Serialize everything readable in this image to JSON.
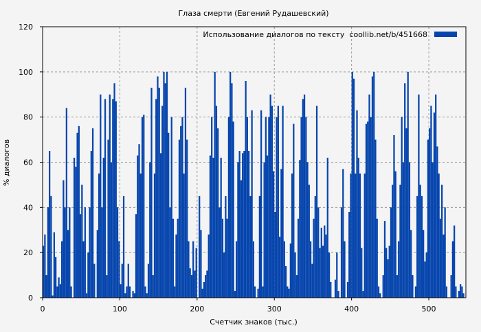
{
  "chart_data": {
    "type": "bar",
    "title": "Глаза смерти (Евгений Рудашевский)",
    "xlabel": "Счетчик знаков (тыс.)",
    "ylabel": "% диалогов",
    "xlim": [
      0,
      548
    ],
    "ylim": [
      0,
      120
    ],
    "xticks": [
      0,
      100,
      200,
      300,
      400,
      500
    ],
    "yticks": [
      0,
      20,
      40,
      60,
      80,
      100,
      120
    ],
    "grid": true,
    "legend_position": "top-right",
    "color": "#0645ad",
    "series": [
      {
        "name": "Использование диалогов по тексту  coollib.net/b/451668",
        "points": [
          [
            0,
            23
          ],
          [
            2,
            28
          ],
          [
            4,
            10
          ],
          [
            6,
            40
          ],
          [
            8,
            65
          ],
          [
            10,
            45
          ],
          [
            12,
            1
          ],
          [
            14,
            29
          ],
          [
            16,
            18
          ],
          [
            18,
            5
          ],
          [
            20,
            9
          ],
          [
            22,
            6
          ],
          [
            24,
            25
          ],
          [
            26,
            52
          ],
          [
            28,
            40
          ],
          [
            30,
            84
          ],
          [
            32,
            30
          ],
          [
            34,
            40
          ],
          [
            36,
            5
          ],
          [
            38,
            0
          ],
          [
            40,
            62
          ],
          [
            42,
            58
          ],
          [
            44,
            73
          ],
          [
            46,
            76
          ],
          [
            48,
            37
          ],
          [
            50,
            50
          ],
          [
            52,
            25
          ],
          [
            54,
            40
          ],
          [
            56,
            2
          ],
          [
            58,
            20
          ],
          [
            60,
            40
          ],
          [
            62,
            65
          ],
          [
            64,
            75
          ],
          [
            66,
            15
          ],
          [
            68,
            0
          ],
          [
            70,
            30
          ],
          [
            72,
            55
          ],
          [
            74,
            90
          ],
          [
            76,
            40
          ],
          [
            78,
            62
          ],
          [
            80,
            88
          ],
          [
            82,
            10
          ],
          [
            84,
            70
          ],
          [
            86,
            90
          ],
          [
            88,
            60
          ],
          [
            90,
            88
          ],
          [
            92,
            95
          ],
          [
            94,
            87
          ],
          [
            96,
            40
          ],
          [
            98,
            25
          ],
          [
            100,
            6
          ],
          [
            102,
            15
          ],
          [
            104,
            45
          ],
          [
            106,
            2
          ],
          [
            108,
            5
          ],
          [
            110,
            15
          ],
          [
            112,
            5
          ],
          [
            114,
            0
          ],
          [
            116,
            3
          ],
          [
            118,
            2
          ],
          [
            120,
            37
          ],
          [
            122,
            63
          ],
          [
            124,
            68
          ],
          [
            126,
            55
          ],
          [
            128,
            80
          ],
          [
            130,
            81
          ],
          [
            132,
            5
          ],
          [
            134,
            2
          ],
          [
            136,
            15
          ],
          [
            138,
            60
          ],
          [
            140,
            93
          ],
          [
            142,
            10
          ],
          [
            144,
            55
          ],
          [
            146,
            88
          ],
          [
            148,
            98
          ],
          [
            150,
            93
          ],
          [
            152,
            64
          ],
          [
            154,
            85
          ],
          [
            156,
            100
          ],
          [
            158,
            95
          ],
          [
            160,
            100
          ],
          [
            162,
            73
          ],
          [
            164,
            40
          ],
          [
            166,
            80
          ],
          [
            168,
            35
          ],
          [
            170,
            5
          ],
          [
            172,
            28
          ],
          [
            174,
            35
          ],
          [
            176,
            70
          ],
          [
            178,
            76
          ],
          [
            180,
            80
          ],
          [
            182,
            55
          ],
          [
            184,
            93
          ],
          [
            186,
            70
          ],
          [
            188,
            25
          ],
          [
            190,
            13
          ],
          [
            192,
            10
          ],
          [
            194,
            25
          ],
          [
            196,
            12
          ],
          [
            198,
            22
          ],
          [
            200,
            0
          ],
          [
            202,
            45
          ],
          [
            204,
            30
          ],
          [
            206,
            4
          ],
          [
            208,
            7
          ],
          [
            210,
            10
          ],
          [
            212,
            12
          ],
          [
            214,
            28
          ],
          [
            216,
            63
          ],
          [
            218,
            80
          ],
          [
            220,
            62
          ],
          [
            222,
            100
          ],
          [
            224,
            85
          ],
          [
            226,
            75
          ],
          [
            228,
            40
          ],
          [
            230,
            62
          ],
          [
            232,
            35
          ],
          [
            234,
            20
          ],
          [
            236,
            45
          ],
          [
            238,
            35
          ],
          [
            240,
            80
          ],
          [
            242,
            100
          ],
          [
            244,
            95
          ],
          [
            246,
            78
          ],
          [
            248,
            3
          ],
          [
            250,
            25
          ],
          [
            252,
            60
          ],
          [
            254,
            65
          ],
          [
            256,
            52
          ],
          [
            258,
            64
          ],
          [
            260,
            65
          ],
          [
            262,
            96
          ],
          [
            264,
            80
          ],
          [
            266,
            65
          ],
          [
            268,
            45
          ],
          [
            270,
            83
          ],
          [
            272,
            25
          ],
          [
            274,
            5
          ],
          [
            276,
            0
          ],
          [
            278,
            4
          ],
          [
            280,
            45
          ],
          [
            282,
            83
          ],
          [
            284,
            5
          ],
          [
            286,
            60
          ],
          [
            288,
            80
          ],
          [
            290,
            63
          ],
          [
            292,
            80
          ],
          [
            294,
            90
          ],
          [
            296,
            85
          ],
          [
            298,
            56
          ],
          [
            300,
            38
          ],
          [
            302,
            80
          ],
          [
            304,
            85
          ],
          [
            306,
            27
          ],
          [
            308,
            57
          ],
          [
            310,
            85
          ],
          [
            312,
            25
          ],
          [
            314,
            14
          ],
          [
            316,
            5
          ],
          [
            318,
            4
          ],
          [
            320,
            24
          ],
          [
            322,
            55
          ],
          [
            324,
            77
          ],
          [
            326,
            20
          ],
          [
            328,
            10
          ],
          [
            330,
            35
          ],
          [
            332,
            61
          ],
          [
            334,
            80
          ],
          [
            336,
            88
          ],
          [
            338,
            90
          ],
          [
            340,
            80
          ],
          [
            342,
            60
          ],
          [
            344,
            50
          ],
          [
            346,
            25
          ],
          [
            348,
            15
          ],
          [
            350,
            35
          ],
          [
            352,
            45
          ],
          [
            354,
            85
          ],
          [
            356,
            40
          ],
          [
            358,
            22
          ],
          [
            360,
            31
          ],
          [
            362,
            23
          ],
          [
            364,
            32
          ],
          [
            366,
            28
          ],
          [
            368,
            62
          ],
          [
            370,
            20
          ],
          [
            372,
            7
          ],
          [
            374,
            0
          ],
          [
            376,
            0
          ],
          [
            378,
            8
          ],
          [
            380,
            20
          ],
          [
            382,
            3
          ],
          [
            384,
            0
          ],
          [
            386,
            40
          ],
          [
            388,
            57
          ],
          [
            390,
            25
          ],
          [
            392,
            0
          ],
          [
            394,
            7
          ],
          [
            396,
            38
          ],
          [
            398,
            55
          ],
          [
            400,
            100
          ],
          [
            402,
            97
          ],
          [
            404,
            55
          ],
          [
            406,
            83
          ],
          [
            408,
            62
          ],
          [
            410,
            55
          ],
          [
            412,
            22
          ],
          [
            414,
            3
          ],
          [
            416,
            55
          ],
          [
            418,
            77
          ],
          [
            420,
            78
          ],
          [
            422,
            90
          ],
          [
            424,
            80
          ],
          [
            426,
            98
          ],
          [
            428,
            100
          ],
          [
            430,
            70
          ],
          [
            432,
            35
          ],
          [
            434,
            5
          ],
          [
            436,
            2
          ],
          [
            438,
            0
          ],
          [
            440,
            10
          ],
          [
            442,
            34
          ],
          [
            444,
            22
          ],
          [
            446,
            17
          ],
          [
            448,
            23
          ],
          [
            450,
            40
          ],
          [
            452,
            50
          ],
          [
            454,
            72
          ],
          [
            456,
            56
          ],
          [
            458,
            10
          ],
          [
            460,
            25
          ],
          [
            462,
            50
          ],
          [
            464,
            80
          ],
          [
            466,
            60
          ],
          [
            468,
            95
          ],
          [
            470,
            75
          ],
          [
            472,
            100
          ],
          [
            474,
            60
          ],
          [
            476,
            30
          ],
          [
            478,
            10
          ],
          [
            480,
            0
          ],
          [
            482,
            5
          ],
          [
            484,
            45
          ],
          [
            486,
            90
          ],
          [
            488,
            50
          ],
          [
            490,
            45
          ],
          [
            492,
            30
          ],
          [
            494,
            16
          ],
          [
            496,
            20
          ],
          [
            498,
            70
          ],
          [
            500,
            75
          ],
          [
            502,
            85
          ],
          [
            504,
            60
          ],
          [
            506,
            82
          ],
          [
            508,
            90
          ],
          [
            510,
            67
          ],
          [
            512,
            55
          ],
          [
            514,
            35
          ],
          [
            516,
            50
          ],
          [
            518,
            28
          ],
          [
            520,
            40
          ],
          [
            522,
            5
          ],
          [
            524,
            0
          ],
          [
            526,
            0
          ],
          [
            528,
            10
          ],
          [
            530,
            25
          ],
          [
            532,
            32
          ],
          [
            534,
            5
          ],
          [
            536,
            0
          ],
          [
            538,
            3
          ],
          [
            540,
            6
          ],
          [
            542,
            5
          ],
          [
            544,
            2
          ]
        ]
      }
    ]
  }
}
